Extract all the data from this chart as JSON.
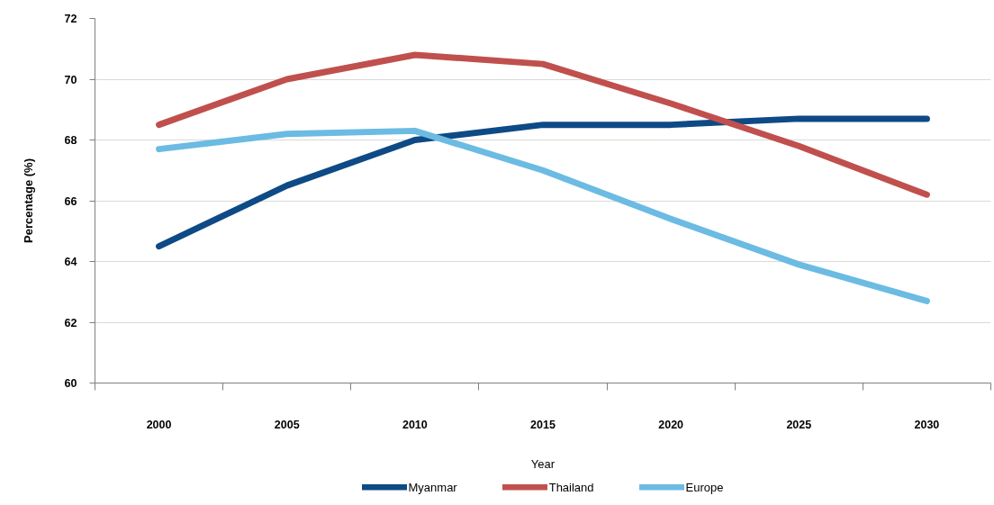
{
  "chart_data": {
    "type": "line",
    "xlabel": "Year",
    "ylabel": "Percentage (%)",
    "categories": [
      "2000",
      "2005",
      "2010",
      "2015",
      "2020",
      "2025",
      "2030"
    ],
    "series": [
      {
        "name": "Myanmar",
        "color": "#0e4a85",
        "values": [
          64.5,
          66.5,
          68.0,
          68.5,
          68.5,
          68.7,
          68.7
        ]
      },
      {
        "name": "Thailand",
        "color": "#c0504d",
        "values": [
          68.5,
          70.0,
          70.8,
          70.5,
          69.2,
          67.8,
          66.2
        ]
      },
      {
        "name": "Europe",
        "color": "#6bbbe3",
        "values": [
          67.7,
          68.2,
          68.3,
          67.0,
          65.4,
          63.9,
          62.7
        ]
      }
    ],
    "ylim": [
      60,
      72
    ],
    "yticks": [
      60,
      62,
      64,
      66,
      68,
      70,
      72
    ],
    "grid": "y",
    "legend": "bottom"
  }
}
